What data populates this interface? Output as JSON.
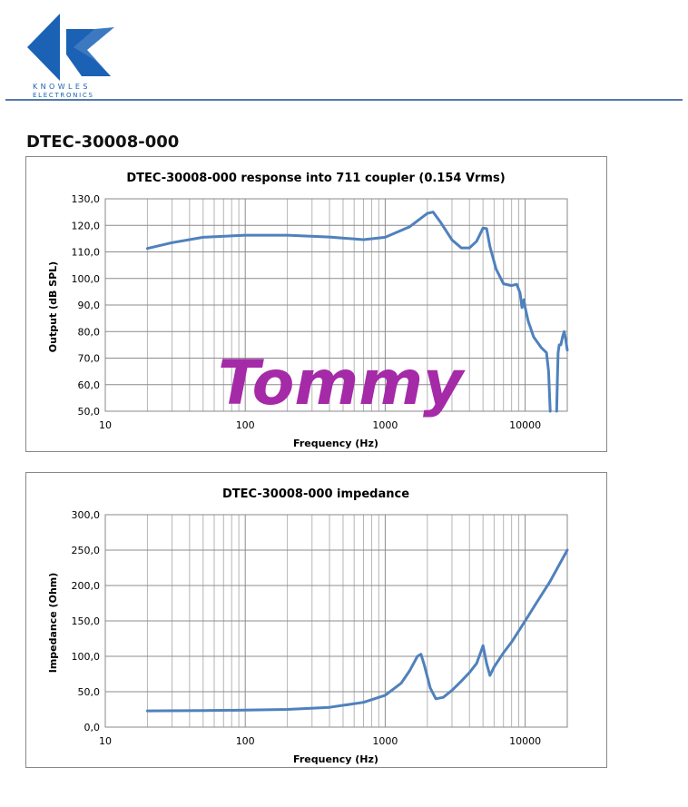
{
  "header": {
    "brand_line1": "KNOWLES",
    "brand_line2": "ELECTRONICS",
    "brand_color": "#1b62b5"
  },
  "page": {
    "title": "DTEC-30008-000"
  },
  "watermark": {
    "text": "Tommy",
    "color": "#a52aa8"
  },
  "chart_data": [
    {
      "type": "line",
      "title": "DTEC-30008-000 response into 711 coupler (0.154 Vrms)",
      "xlabel": "Frequency (Hz)",
      "ylabel": "Output (dB SPL)",
      "xscale": "log",
      "xlim": [
        10,
        20000
      ],
      "ylim": [
        50,
        130
      ],
      "xticks": [
        "10",
        "100",
        "1000",
        "10000"
      ],
      "yticks": [
        "50,0",
        "60,0",
        "70,0",
        "80,0",
        "90,0",
        "100,0",
        "110,0",
        "120,0",
        "130,0"
      ],
      "grid": true,
      "line_color": "#4f81bd",
      "series": [
        {
          "x": [
            20,
            30,
            50,
            100,
            200,
            400,
            700,
            1000,
            1500,
            2000,
            2200,
            2500,
            3000,
            3500,
            4000,
            4500,
            5000,
            5300,
            5600,
            6200,
            7000,
            8000,
            8700,
            9200,
            9500,
            9800,
            10000,
            10500,
            11500,
            13000,
            14200,
            14700,
            15000,
            15100
          ],
          "y": [
            111.3,
            113.5,
            115.5,
            116.3,
            116.3,
            115.6,
            114.6,
            115.5,
            119.5,
            124.5,
            125,
            121,
            114.5,
            111.5,
            111.5,
            114,
            119,
            118.8,
            112,
            103.5,
            98,
            97.3,
            97.8,
            94.5,
            89,
            92,
            89,
            84,
            78,
            74,
            72,
            65,
            54,
            50
          ]
        },
        {
          "x": [
            16800,
            17000,
            17200,
            17500,
            18000,
            18500,
            19000,
            19500,
            20000
          ],
          "y": [
            50,
            62,
            72,
            75,
            75,
            78,
            80,
            77,
            73
          ]
        }
      ]
    },
    {
      "type": "line",
      "title": "DTEC-30008-000 impedance",
      "xlabel": "Frequency (Hz)",
      "ylabel": "Impedance (Ohm)",
      "xscale": "log",
      "xlim": [
        10,
        20000
      ],
      "ylim": [
        0,
        300
      ],
      "xticks": [
        "10",
        "100",
        "1000",
        "10000"
      ],
      "yticks": [
        "0,0",
        "50,0",
        "100,0",
        "150,0",
        "200,0",
        "250,0",
        "300,0"
      ],
      "grid": true,
      "line_color": "#4f81bd",
      "series": [
        {
          "x": [
            20,
            50,
            100,
            200,
            400,
            700,
            1000,
            1300,
            1500,
            1700,
            1800,
            1900,
            2100,
            2300,
            2600,
            3000,
            3500,
            4000,
            4500,
            4800,
            5000,
            5300,
            5600,
            6000,
            7000,
            8000,
            10000,
            12000,
            15000,
            20000
          ],
          "y": [
            23,
            23.5,
            24,
            25,
            28,
            35,
            45,
            62,
            80,
            100,
            103,
            88,
            55,
            40,
            42,
            52,
            65,
            77,
            90,
            105,
            115,
            90,
            73,
            85,
            105,
            120,
            150,
            175,
            205,
            250
          ]
        }
      ]
    }
  ]
}
